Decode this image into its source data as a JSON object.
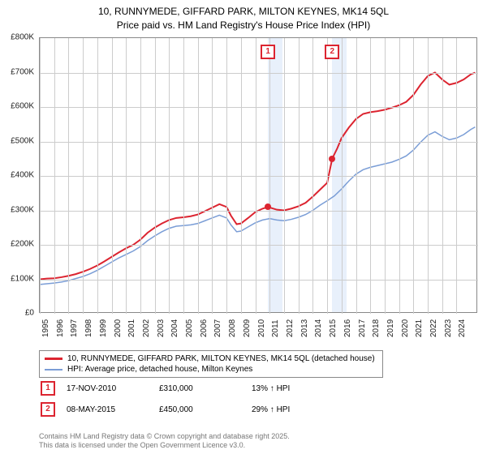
{
  "title_line1": "10, RUNNYMEDE, GIFFARD PARK, MILTON KEYNES, MK14 5QL",
  "title_line2": "Price paid vs. HM Land Registry's House Price Index (HPI)",
  "chart": {
    "type": "line",
    "background_color": "#ffffff",
    "grid_color": "#cccccc",
    "band_color": "#e8f0fb",
    "x_min": 1995,
    "x_max": 2025.5,
    "years": [
      1995,
      1996,
      1997,
      1998,
      1999,
      2000,
      2001,
      2002,
      2003,
      2004,
      2005,
      2006,
      2007,
      2008,
      2009,
      2010,
      2011,
      2012,
      2013,
      2014,
      2015,
      2016,
      2017,
      2018,
      2019,
      2020,
      2021,
      2022,
      2023,
      2024
    ],
    "y_min": 0,
    "y_max": 800,
    "y_ticks": [
      0,
      100,
      200,
      300,
      400,
      500,
      600,
      700,
      800
    ],
    "y_tick_labels": [
      "£0",
      "£100K",
      "£200K",
      "£300K",
      "£400K",
      "£500K",
      "£600K",
      "£700K",
      "£800K"
    ],
    "bands": [
      {
        "start": 2010.88,
        "end": 2011.88
      },
      {
        "start": 2015.35,
        "end": 2016.35
      }
    ],
    "markers": [
      {
        "label": "1",
        "x": 2010.88,
        "y": 310
      },
      {
        "label": "2",
        "x": 2015.35,
        "y": 450
      }
    ],
    "sale_points": [
      {
        "x": 2010.88,
        "y": 310
      },
      {
        "x": 2015.35,
        "y": 450
      }
    ],
    "series": [
      {
        "name": "10, RUNNYMEDE, GIFFARD PARK, MILTON KEYNES, MK14 5QL (detached house)",
        "color": "#dc2430",
        "width": 2,
        "data": [
          [
            1995.0,
            100
          ],
          [
            1995.5,
            102
          ],
          [
            1996.0,
            103
          ],
          [
            1996.5,
            106
          ],
          [
            1997.0,
            110
          ],
          [
            1997.5,
            115
          ],
          [
            1998.0,
            122
          ],
          [
            1998.5,
            130
          ],
          [
            1999.0,
            140
          ],
          [
            1999.5,
            152
          ],
          [
            2000.0,
            165
          ],
          [
            2000.5,
            178
          ],
          [
            2001.0,
            190
          ],
          [
            2001.5,
            200
          ],
          [
            2002.0,
            215
          ],
          [
            2002.5,
            235
          ],
          [
            2003.0,
            250
          ],
          [
            2003.5,
            262
          ],
          [
            2004.0,
            272
          ],
          [
            2004.5,
            278
          ],
          [
            2005.0,
            280
          ],
          [
            2005.5,
            283
          ],
          [
            2006.0,
            288
          ],
          [
            2006.5,
            298
          ],
          [
            2007.0,
            308
          ],
          [
            2007.5,
            318
          ],
          [
            2008.0,
            310
          ],
          [
            2008.3,
            285
          ],
          [
            2008.7,
            260
          ],
          [
            2009.0,
            262
          ],
          [
            2009.5,
            278
          ],
          [
            2010.0,
            295
          ],
          [
            2010.5,
            305
          ],
          [
            2010.88,
            310
          ],
          [
            2011.5,
            302
          ],
          [
            2012.0,
            300
          ],
          [
            2012.5,
            305
          ],
          [
            2013.0,
            312
          ],
          [
            2013.5,
            322
          ],
          [
            2014.0,
            340
          ],
          [
            2014.5,
            360
          ],
          [
            2015.0,
            380
          ],
          [
            2015.35,
            450
          ],
          [
            2015.7,
            480
          ],
          [
            2016.0,
            510
          ],
          [
            2016.5,
            540
          ],
          [
            2017.0,
            565
          ],
          [
            2017.5,
            580
          ],
          [
            2018.0,
            585
          ],
          [
            2018.5,
            588
          ],
          [
            2019.0,
            592
          ],
          [
            2019.5,
            598
          ],
          [
            2020.0,
            605
          ],
          [
            2020.5,
            615
          ],
          [
            2021.0,
            635
          ],
          [
            2021.5,
            665
          ],
          [
            2022.0,
            690
          ],
          [
            2022.5,
            700
          ],
          [
            2023.0,
            680
          ],
          [
            2023.5,
            665
          ],
          [
            2024.0,
            670
          ],
          [
            2024.5,
            680
          ],
          [
            2025.0,
            695
          ],
          [
            2025.3,
            700
          ]
        ]
      },
      {
        "name": "HPI: Average price, detached house, Milton Keynes",
        "color": "#7a9dd6",
        "width": 1.5,
        "data": [
          [
            1995.0,
            85
          ],
          [
            1995.5,
            87
          ],
          [
            1996.0,
            89
          ],
          [
            1996.5,
            92
          ],
          [
            1997.0,
            96
          ],
          [
            1997.5,
            102
          ],
          [
            1998.0,
            108
          ],
          [
            1998.5,
            116
          ],
          [
            1999.0,
            126
          ],
          [
            1999.5,
            138
          ],
          [
            2000.0,
            150
          ],
          [
            2000.5,
            162
          ],
          [
            2001.0,
            172
          ],
          [
            2001.5,
            182
          ],
          [
            2002.0,
            195
          ],
          [
            2002.5,
            212
          ],
          [
            2003.0,
            226
          ],
          [
            2003.5,
            238
          ],
          [
            2004.0,
            248
          ],
          [
            2004.5,
            254
          ],
          [
            2005.0,
            256
          ],
          [
            2005.5,
            258
          ],
          [
            2006.0,
            262
          ],
          [
            2006.5,
            270
          ],
          [
            2007.0,
            278
          ],
          [
            2007.5,
            286
          ],
          [
            2008.0,
            278
          ],
          [
            2008.3,
            258
          ],
          [
            2008.7,
            238
          ],
          [
            2009.0,
            240
          ],
          [
            2009.5,
            252
          ],
          [
            2010.0,
            264
          ],
          [
            2010.5,
            272
          ],
          [
            2011.0,
            276
          ],
          [
            2011.5,
            272
          ],
          [
            2012.0,
            270
          ],
          [
            2012.5,
            274
          ],
          [
            2013.0,
            280
          ],
          [
            2013.5,
            288
          ],
          [
            2014.0,
            300
          ],
          [
            2014.5,
            315
          ],
          [
            2015.0,
            328
          ],
          [
            2015.5,
            342
          ],
          [
            2016.0,
            362
          ],
          [
            2016.5,
            385
          ],
          [
            2017.0,
            405
          ],
          [
            2017.5,
            418
          ],
          [
            2018.0,
            425
          ],
          [
            2018.5,
            430
          ],
          [
            2019.0,
            435
          ],
          [
            2019.5,
            440
          ],
          [
            2020.0,
            448
          ],
          [
            2020.5,
            458
          ],
          [
            2021.0,
            475
          ],
          [
            2021.5,
            498
          ],
          [
            2022.0,
            518
          ],
          [
            2022.5,
            528
          ],
          [
            2023.0,
            515
          ],
          [
            2023.5,
            505
          ],
          [
            2024.0,
            510
          ],
          [
            2024.5,
            520
          ],
          [
            2025.0,
            535
          ],
          [
            2025.3,
            542
          ]
        ]
      }
    ]
  },
  "legend": {
    "series1": "10, RUNNYMEDE, GIFFARD PARK, MILTON KEYNES, MK14 5QL (detached house)",
    "series2": "HPI: Average price, detached house, Milton Keynes",
    "series1_color": "#dc2430",
    "series2_color": "#7a9dd6"
  },
  "sales": [
    {
      "marker": "1",
      "date": "17-NOV-2010",
      "price": "£310,000",
      "delta": "13% ↑ HPI"
    },
    {
      "marker": "2",
      "date": "08-MAY-2015",
      "price": "£450,000",
      "delta": "29% ↑ HPI"
    }
  ],
  "footnote_line1": "Contains HM Land Registry data © Crown copyright and database right 2025.",
  "footnote_line2": "This data is licensed under the Open Government Licence v3.0."
}
